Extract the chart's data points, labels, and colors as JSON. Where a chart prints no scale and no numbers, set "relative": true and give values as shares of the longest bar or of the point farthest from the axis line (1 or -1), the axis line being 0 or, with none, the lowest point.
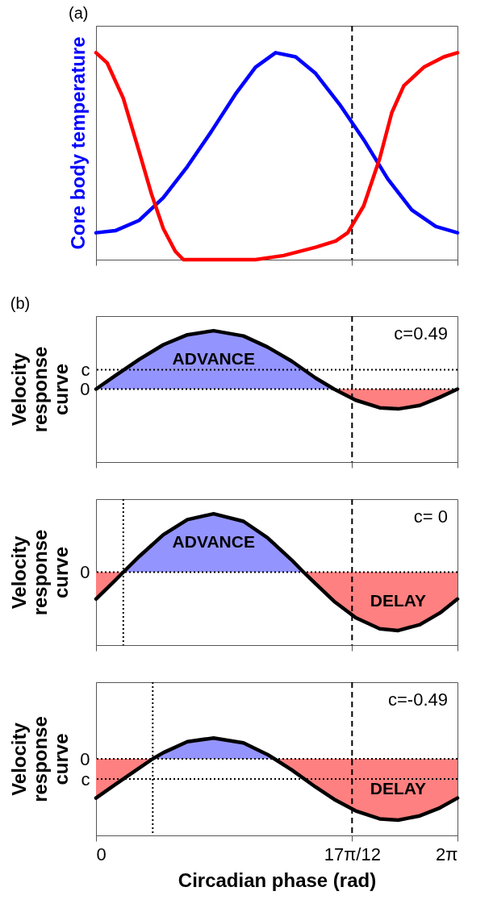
{
  "chart_data": [
    {
      "type": "line",
      "title": "(a)",
      "ylabel": "Core body temperature",
      "relative": true,
      "grid": false,
      "tick_labels": false,
      "xlim": [
        0,
        6.2832
      ],
      "xticks": [
        {
          "value": 0,
          "label": null
        },
        {
          "value": 4.4506,
          "label": null
        },
        {
          "value": 6.2832,
          "label": null
        }
      ],
      "series": [
        {
          "color": "#0000ff",
          "x": [
            0,
            0.334,
            0.752,
            1.17,
            1.588,
            2.006,
            2.424,
            2.772,
            3.121,
            3.469,
            3.817,
            4.235,
            4.653,
            5.071,
            5.489,
            5.907,
            6.283
          ],
          "values": [
            0.13,
            0.14,
            0.19,
            0.3,
            0.45,
            0.62,
            0.8,
            0.93,
            1.0,
            0.98,
            0.9,
            0.75,
            0.58,
            0.39,
            0.24,
            0.16,
            0.13
          ]
        },
        {
          "color": "#ff0000",
          "x": [
            0,
            0.195,
            0.474,
            0.752,
            0.961,
            1.17,
            1.379,
            1.519,
            2.146,
            2.772,
            3.26,
            3.817,
            4.166,
            4.375,
            4.653,
            4.932,
            5.141,
            5.35,
            5.698,
            6.047,
            6.283
          ],
          "values": [
            1.0,
            0.95,
            0.78,
            0.52,
            0.32,
            0.15,
            0.04,
            0,
            0,
            0,
            0.02,
            0.06,
            0.09,
            0.13,
            0.26,
            0.49,
            0.71,
            0.84,
            0.93,
            0.98,
            1.0
          ]
        }
      ],
      "ref_lines": [
        {
          "axis": "x",
          "value": 4.4506,
          "line_style": "dashed",
          "color": "#000000"
        }
      ]
    },
    {
      "type": "line",
      "title": "(b)",
      "ylabel": "Velocity response curve",
      "relative": true,
      "grid": false,
      "tick_labels": false,
      "xlim": [
        0,
        6.2832
      ],
      "xticks": [
        {
          "value": 0,
          "label": null
        },
        {
          "value": 4.4506,
          "label": null
        },
        {
          "value": 6.2832,
          "label": null
        }
      ],
      "series": [
        {
          "type": "area",
          "name": "ADVANCE",
          "color": "#9494ff",
          "x": [
            0,
            0.334,
            0.752,
            1.17,
            1.588,
            2.044,
            2.563,
            2.981,
            3.399,
            3.817,
            4.138
          ],
          "values": [
            0,
            0.23,
            0.51,
            0.76,
            0.93,
            1.0,
            0.91,
            0.72,
            0.48,
            0.19,
            0
          ]
        },
        {
          "type": "area",
          "color": "#ff8080",
          "x": [
            4.138,
            4.514,
            4.932,
            5.252,
            5.629,
            5.977,
            6.283
          ],
          "values": [
            0,
            -0.19,
            -0.32,
            -0.34,
            -0.28,
            -0.14,
            0
          ]
        },
        {
          "color": "#000000",
          "x": [
            0,
            0.334,
            0.752,
            1.17,
            1.588,
            2.044,
            2.563,
            2.981,
            3.399,
            3.817,
            4.138,
            4.514,
            4.932,
            5.252,
            5.629,
            5.977,
            6.283
          ],
          "values": [
            0,
            0.23,
            0.51,
            0.76,
            0.93,
            1.0,
            0.91,
            0.72,
            0.48,
            0.19,
            0,
            -0.19,
            -0.32,
            -0.34,
            -0.28,
            -0.14,
            0
          ]
        }
      ],
      "ref_lines": [
        {
          "axis": "x",
          "value": 4.4506,
          "line_style": "dashed",
          "color": "#000000"
        },
        {
          "axis": "y",
          "value": 0,
          "label": "0",
          "line_style": "dotted",
          "color": "#000000"
        },
        {
          "axis": "y",
          "value": 0.33,
          "label": "c",
          "line_style": "dotted",
          "color": "#000000"
        }
      ],
      "annotations": [
        "c=0.49"
      ]
    },
    {
      "type": "line",
      "ylabel": "Velocity response curve",
      "relative": true,
      "grid": false,
      "tick_labels": false,
      "xlim": [
        0,
        6.2832
      ],
      "xticks": [
        {
          "value": 0,
          "label": null
        },
        {
          "value": 4.4506,
          "label": null
        },
        {
          "value": 6.2832,
          "label": null
        }
      ],
      "series": [
        {
          "type": "area",
          "color": "#ff8080",
          "x": [
            0,
            0.334,
            0.474
          ],
          "values": [
            -0.46,
            -0.14,
            0
          ]
        },
        {
          "type": "area",
          "name": "ADVANCE",
          "color": "#9494ff",
          "x": [
            0.474,
            0.752,
            1.17,
            1.588,
            2.044,
            2.563,
            2.981,
            3.399,
            3.608
          ],
          "values": [
            0,
            0.27,
            0.64,
            0.9,
            1.0,
            0.87,
            0.59,
            0.21,
            0
          ]
        },
        {
          "type": "area",
          "name": "DELAY",
          "color": "#ff8080",
          "x": [
            3.608,
            3.817,
            4.138,
            4.514,
            4.932,
            5.252,
            5.629,
            5.977,
            6.283
          ],
          "values": [
            0,
            -0.2,
            -0.5,
            -0.78,
            -0.97,
            -1.0,
            -0.9,
            -0.7,
            -0.46
          ]
        },
        {
          "color": "#000000",
          "x": [
            0,
            0.334,
            0.474,
            0.752,
            1.17,
            1.588,
            2.044,
            2.563,
            2.981,
            3.399,
            3.608,
            3.817,
            4.138,
            4.514,
            4.932,
            5.252,
            5.629,
            5.977,
            6.283
          ],
          "values": [
            -0.46,
            -0.14,
            0,
            0.27,
            0.64,
            0.9,
            1.0,
            0.87,
            0.59,
            0.21,
            0,
            -0.2,
            -0.5,
            -0.78,
            -0.97,
            -1.0,
            -0.9,
            -0.7,
            -0.46
          ]
        }
      ],
      "ref_lines": [
        {
          "axis": "x",
          "value": 4.4506,
          "line_style": "dashed",
          "color": "#000000"
        },
        {
          "axis": "x",
          "value": 0.474,
          "line_style": "dotted",
          "color": "#000000"
        },
        {
          "axis": "y",
          "value": 0,
          "label": "0",
          "line_style": "dotted",
          "color": "#000000"
        }
      ],
      "annotations": [
        "c= 0"
      ]
    },
    {
      "type": "line",
      "ylabel": "Velocity response curve",
      "xlabel": "Circadian phase (rad)",
      "relative": true,
      "grid": false,
      "tick_labels": "x",
      "xlim": [
        0,
        6.2832
      ],
      "xticks": [
        0,
        {
          "value": 4.4506,
          "label": "17π/12"
        },
        {
          "value": 6.2832,
          "label": "2π"
        }
      ],
      "series": [
        {
          "type": "area",
          "color": "#ff8080",
          "x": [
            0,
            0.334,
            0.752,
            0.986
          ],
          "values": [
            -0.64,
            -0.42,
            -0.15,
            0
          ]
        },
        {
          "type": "area",
          "color": "#9494ff",
          "x": [
            0.986,
            1.17,
            1.588,
            2.044,
            2.563,
            2.981,
            3.1
          ],
          "values": [
            0,
            0.1,
            0.28,
            0.34,
            0.26,
            0.07,
            0
          ]
        },
        {
          "type": "area",
          "name": "DELAY",
          "color": "#ff8080",
          "x": [
            3.1,
            3.399,
            3.817,
            4.138,
            4.514,
            4.932,
            5.252,
            5.629,
            5.977,
            6.283
          ],
          "values": [
            0,
            -0.18,
            -0.46,
            -0.66,
            -0.85,
            -0.98,
            -1.0,
            -0.93,
            -0.8,
            -0.64
          ]
        },
        {
          "color": "#000000",
          "x": [
            0,
            0.334,
            0.752,
            0.986,
            1.17,
            1.588,
            2.044,
            2.563,
            2.981,
            3.1,
            3.399,
            3.817,
            4.138,
            4.514,
            4.932,
            5.252,
            5.629,
            5.977,
            6.283
          ],
          "values": [
            -0.64,
            -0.42,
            -0.15,
            0,
            0.1,
            0.28,
            0.34,
            0.26,
            0.07,
            0,
            -0.18,
            -0.46,
            -0.66,
            -0.85,
            -0.98,
            -1.0,
            -0.93,
            -0.8,
            -0.64
          ]
        }
      ],
      "ref_lines": [
        {
          "axis": "x",
          "value": 4.4506,
          "line_style": "dashed",
          "color": "#000000"
        },
        {
          "axis": "x",
          "value": 0.986,
          "line_style": "dotted",
          "color": "#000000"
        },
        {
          "axis": "y",
          "value": 0,
          "label": "0",
          "line_style": "dotted",
          "color": "#000000"
        },
        {
          "axis": "y",
          "value": -0.33,
          "label": "c",
          "line_style": "dotted",
          "color": "#000000"
        }
      ],
      "annotations": [
        "c=-0.49"
      ]
    }
  ]
}
